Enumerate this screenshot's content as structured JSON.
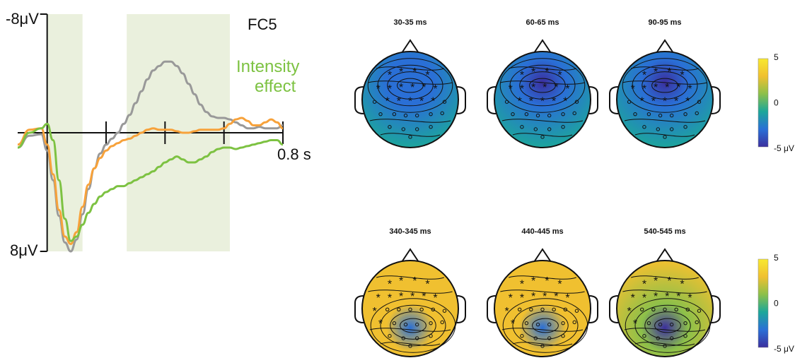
{
  "chart_data": [
    {
      "type": "line",
      "panel": "erp",
      "channel_label": "FC5",
      "annotation": "Intensity\neffect",
      "y_tick_top": "-8μV",
      "y_tick_bottom": "8μV",
      "x_end_label": "0.8 s",
      "xlim": [
        -0.1,
        0.8
      ],
      "ylim": [
        -8,
        8
      ],
      "y_inverted": true,
      "x_ticks": [
        0.2,
        0.4,
        0.6
      ],
      "shaded_intervals": [
        [
          0.0,
          0.12
        ],
        [
          0.27,
          0.62
        ]
      ],
      "colors": {
        "shade": "#eaf0dd",
        "series": [
          "#999999",
          "#f7a23b",
          "#7dc242"
        ],
        "annotation": "#7dc242"
      },
      "x": [
        -0.1,
        -0.06,
        -0.02,
        0.0,
        0.02,
        0.04,
        0.06,
        0.08,
        0.1,
        0.12,
        0.14,
        0.16,
        0.18,
        0.2,
        0.22,
        0.24,
        0.26,
        0.28,
        0.3,
        0.32,
        0.34,
        0.36,
        0.38,
        0.4,
        0.42,
        0.44,
        0.46,
        0.48,
        0.5,
        0.52,
        0.54,
        0.56,
        0.58,
        0.6,
        0.62,
        0.64,
        0.66,
        0.68,
        0.7,
        0.72,
        0.74,
        0.76,
        0.78,
        0.8
      ],
      "series": [
        {
          "values": [
            1.0,
            0.2,
            0.1,
            1.2,
            3.2,
            5.6,
            7.4,
            8.0,
            7.2,
            5.5,
            3.8,
            2.4,
            1.4,
            0.8,
            0.4,
            0.0,
            -0.6,
            -1.2,
            -2.0,
            -2.8,
            -3.6,
            -4.2,
            -4.5,
            -4.8,
            -4.8,
            -4.5,
            -4.0,
            -3.3,
            -2.6,
            -1.9,
            -1.4,
            -1.1,
            -1.0,
            -1.0,
            -0.9,
            -0.7,
            -0.5,
            -0.3,
            -0.3,
            -0.4,
            -0.3,
            -0.3,
            -0.3,
            -0.5
          ]
        },
        {
          "values": [
            0.8,
            -0.2,
            -0.3,
            0.8,
            2.8,
            5.2,
            7.0,
            7.5,
            6.7,
            5.0,
            3.5,
            2.4,
            1.7,
            1.2,
            0.9,
            0.7,
            0.5,
            0.4,
            0.2,
            0.0,
            -0.2,
            -0.3,
            -0.2,
            -0.2,
            -0.2,
            -0.1,
            0.0,
            0.0,
            -0.1,
            -0.2,
            -0.2,
            -0.2,
            -0.2,
            -0.3,
            -0.6,
            -0.9,
            -1.0,
            -0.8,
            -0.5,
            -0.5,
            -0.7,
            -0.9,
            -0.7,
            -0.3
          ]
        },
        {
          "values": [
            1.0,
            0.0,
            -0.3,
            -0.6,
            0.5,
            3.2,
            5.8,
            7.3,
            7.0,
            6.2,
            5.4,
            4.8,
            4.3,
            4.0,
            3.8,
            3.6,
            3.6,
            3.4,
            3.2,
            3.0,
            2.8,
            2.6,
            2.3,
            2.0,
            1.8,
            1.6,
            1.8,
            2.0,
            2.0,
            1.8,
            1.6,
            1.3,
            1.1,
            1.0,
            1.0,
            1.1,
            1.0,
            0.9,
            0.8,
            0.7,
            0.6,
            0.5,
            0.5,
            0.8
          ]
        }
      ]
    },
    {
      "type": "heatmap",
      "panel": "topomaps",
      "colormap": [
        "#3b2f9e",
        "#2a6fd6",
        "#1ca79a",
        "#8cc04a",
        "#f0c030",
        "#f8e930"
      ],
      "colorbars": [
        {
          "row": 1,
          "ticks": [
            "5",
            "0",
            "-5 μV"
          ],
          "range": [
            -5,
            5
          ]
        },
        {
          "row": 2,
          "ticks": [
            "5",
            "0",
            "-5 μV"
          ],
          "range": [
            -5,
            5
          ]
        }
      ],
      "maps": [
        {
          "label": "30-35 ms",
          "row": 1,
          "mean_uv": -2.5
        },
        {
          "label": "60-65 ms",
          "row": 1,
          "mean_uv": -3.8
        },
        {
          "label": "90-95 ms",
          "row": 1,
          "mean_uv": -3.3
        },
        {
          "label": "340-345 ms",
          "row": 2,
          "mean_uv": 2.6
        },
        {
          "label": "440-445 ms",
          "row": 2,
          "mean_uv": 2.2
        },
        {
          "label": "540-545 ms",
          "row": 2,
          "mean_uv": 1.4
        }
      ]
    }
  ]
}
